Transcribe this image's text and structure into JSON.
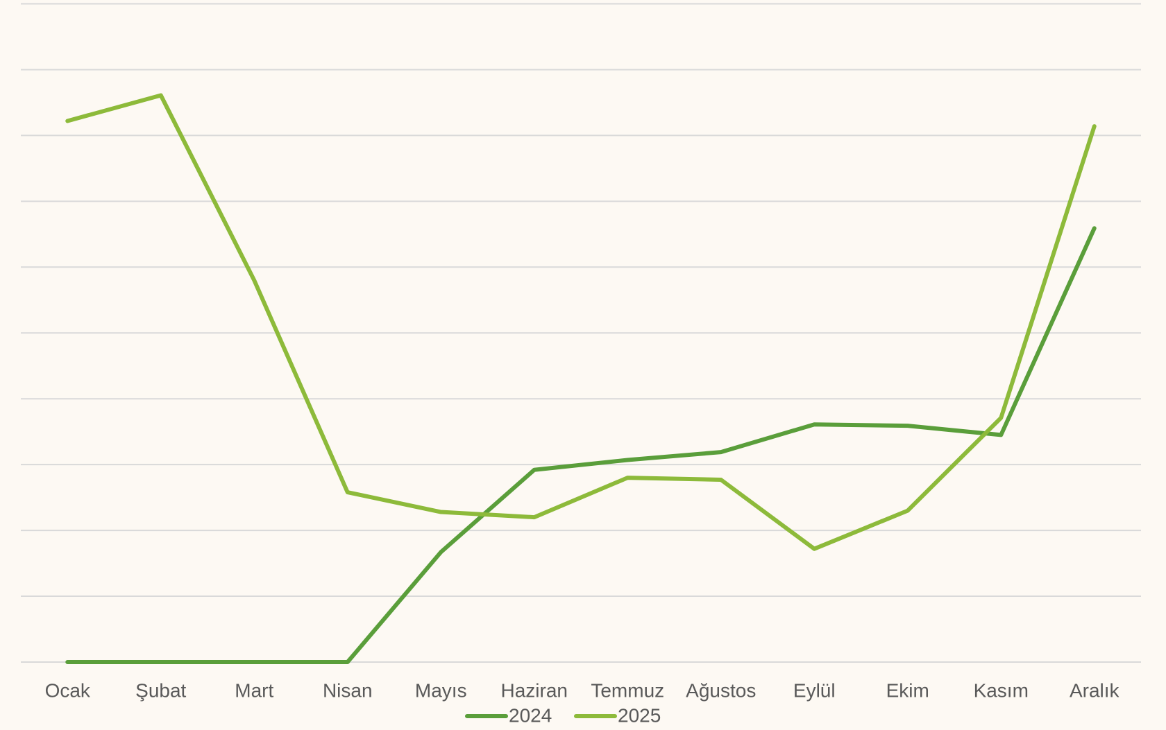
{
  "chart_data": {
    "type": "line",
    "categories": [
      "Ocak",
      "Şubat",
      "Mart",
      "Nisan",
      "Mayıs",
      "Haziran",
      "Temmuz",
      "Ağustos",
      "Eylül",
      "Ekim",
      "Kasım",
      "Aralık"
    ],
    "series": [
      {
        "name": "2024",
        "color": "#5a9e3a",
        "values": [
          0,
          0,
          0,
          0,
          1.67,
          2.92,
          3.07,
          3.19,
          3.61,
          3.59,
          3.45,
          6.59
        ]
      },
      {
        "name": "2025",
        "color": "#8dba3a",
        "values": [
          8.22,
          8.61,
          5.8,
          2.58,
          2.28,
          2.2,
          2.8,
          2.77,
          1.72,
          2.3,
          3.71,
          8.14
        ]
      }
    ],
    "ylim": [
      0,
      10
    ],
    "yticks": [
      0,
      1,
      2,
      3,
      4,
      5,
      6,
      7,
      8,
      9,
      10
    ],
    "grid": true,
    "legend": "bottom"
  }
}
